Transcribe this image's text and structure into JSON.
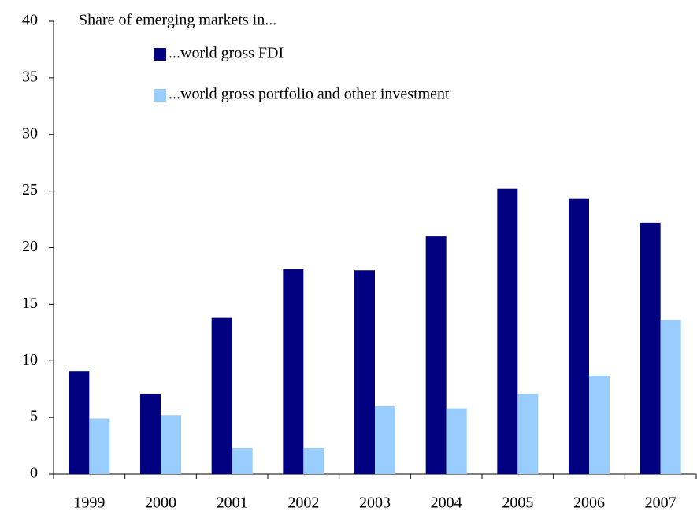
{
  "chart_data": {
    "type": "bar",
    "title": "Share of emerging markets in...",
    "categories": [
      "1999",
      "2000",
      "2001",
      "2002",
      "2003",
      "2004",
      "2005",
      "2006",
      "2007"
    ],
    "series": [
      {
        "name": "...world gross FDI",
        "color": "#000080",
        "values": [
          9.1,
          7.1,
          13.8,
          18.1,
          18.0,
          21.0,
          25.2,
          24.3,
          22.2
        ]
      },
      {
        "name": "...world gross portfolio and other investment",
        "color": "#99ccff",
        "values": [
          4.9,
          5.2,
          2.3,
          2.3,
          6.0,
          5.8,
          7.1,
          8.7,
          13.6
        ]
      }
    ],
    "ylim": [
      0,
      40
    ],
    "yticks": [
      0,
      5,
      10,
      15,
      20,
      25,
      30,
      35,
      40
    ],
    "grid": false
  }
}
